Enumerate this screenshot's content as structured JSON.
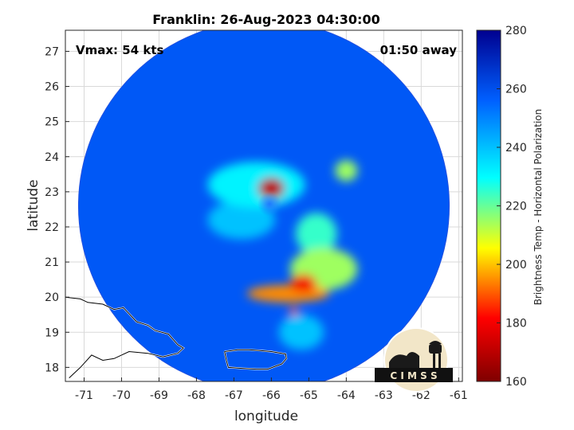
{
  "chart_data": {
    "type": "heatmap",
    "title": "Franklin: 26-Aug-2023 04:30:00",
    "annotations": {
      "vmax": "Vmax: 54 kts",
      "time_away": "01:50 away"
    },
    "xlabel": "longitude",
    "ylabel": "latitude",
    "xlim": [
      -71.5,
      -60.9
    ],
    "ylim": [
      17.6,
      27.6
    ],
    "x_ticks": [
      -71,
      -70,
      -69,
      -68,
      -67,
      -66,
      -65,
      -64,
      -63,
      -62,
      -61
    ],
    "y_ticks": [
      18,
      19,
      20,
      21,
      22,
      23,
      24,
      25,
      26,
      27
    ],
    "grid": true,
    "colorbar": {
      "label": "Brightness Temp - Horizontal Polarization",
      "range": [
        160,
        280
      ],
      "ticks": [
        160,
        180,
        200,
        220,
        240,
        260,
        280
      ],
      "colormap": [
        "#7f0000",
        "#ff0000",
        "#ffff00",
        "#00ffff",
        "#0080ff",
        "#00008f"
      ]
    },
    "swath": {
      "center": [
        -66.2,
        22.6
      ],
      "radius_deg": 4.95,
      "background_tb": 258
    },
    "storm_center": [
      -66.05,
      22.65
    ],
    "features": [
      {
        "lon": -65.55,
        "lat": 20.1,
        "rlon": 1.1,
        "rlat": 0.25,
        "tb": 195
      },
      {
        "lon": -65.15,
        "lat": 20.4,
        "rlon": 0.35,
        "rlat": 0.25,
        "tb": 180
      },
      {
        "lon": -65.4,
        "lat": 19.6,
        "rlon": 0.12,
        "rlat": 0.12,
        "tb": 190
      },
      {
        "lon": -66.0,
        "lat": 23.1,
        "rlon": 0.35,
        "rlat": 0.3,
        "tb": 170
      },
      {
        "lon": -64.6,
        "lat": 20.8,
        "rlon": 0.9,
        "rlat": 0.6,
        "tb": 215
      },
      {
        "lon": -64.8,
        "lat": 21.8,
        "rlon": 0.55,
        "rlat": 0.6,
        "tb": 225
      },
      {
        "lon": -64.0,
        "lat": 23.6,
        "rlon": 0.3,
        "rlat": 0.3,
        "tb": 215
      },
      {
        "lon": -65.2,
        "lat": 19.0,
        "rlon": 0.6,
        "rlat": 0.5,
        "tb": 240
      },
      {
        "lon": -66.4,
        "lat": 23.2,
        "rlon": 1.3,
        "rlat": 0.65,
        "tb": 232
      },
      {
        "lon": -66.8,
        "lat": 22.2,
        "rlon": 0.9,
        "rlat": 0.55,
        "tb": 240
      }
    ],
    "coastlines": [
      {
        "name": "Puerto Rico",
        "points": [
          [
            -67.25,
            18.45
          ],
          [
            -66.9,
            18.5
          ],
          [
            -66.6,
            18.5
          ],
          [
            -66.3,
            18.48
          ],
          [
            -66.0,
            18.45
          ],
          [
            -65.62,
            18.38
          ],
          [
            -65.6,
            18.25
          ],
          [
            -65.72,
            18.1
          ],
          [
            -66.1,
            17.95
          ],
          [
            -66.4,
            17.95
          ],
          [
            -66.75,
            17.97
          ],
          [
            -67.15,
            18.0
          ],
          [
            -67.2,
            18.2
          ],
          [
            -67.25,
            18.45
          ]
        ]
      },
      {
        "name": "Hispaniola",
        "points": [
          [
            -71.5,
            20.0
          ],
          [
            -71.1,
            19.95
          ],
          [
            -70.9,
            19.85
          ],
          [
            -70.5,
            19.8
          ],
          [
            -70.2,
            19.65
          ],
          [
            -69.95,
            19.7
          ],
          [
            -69.6,
            19.3
          ],
          [
            -69.3,
            19.2
          ],
          [
            -69.1,
            19.05
          ],
          [
            -68.75,
            18.95
          ],
          [
            -68.5,
            18.65
          ],
          [
            -68.35,
            18.55
          ],
          [
            -68.5,
            18.4
          ],
          [
            -68.9,
            18.3
          ],
          [
            -69.3,
            18.4
          ],
          [
            -69.8,
            18.45
          ],
          [
            -70.2,
            18.25
          ],
          [
            -70.5,
            18.2
          ],
          [
            -70.8,
            18.35
          ],
          [
            -71.1,
            18.0
          ],
          [
            -71.4,
            17.7
          ]
        ]
      }
    ]
  },
  "logo": {
    "text": "C I M S S"
  }
}
